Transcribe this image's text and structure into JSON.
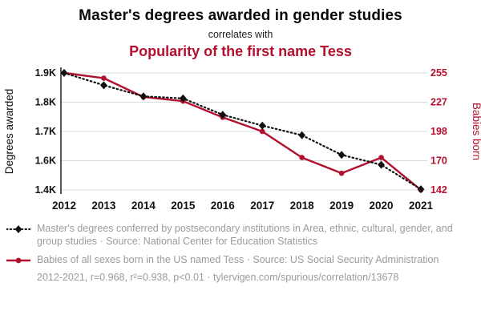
{
  "header": {
    "title": "Master's degrees awarded in gender studies",
    "subtitle": "correlates with",
    "secondary_title": "Popularity of the first name Tess"
  },
  "colors": {
    "red": "#b2102f",
    "black": "#111111",
    "gray": "#9b9b9b",
    "gridline": "#d9d9d9"
  },
  "chart_data": {
    "type": "line",
    "x": [
      2012,
      2013,
      2014,
      2015,
      2016,
      2017,
      2018,
      2019,
      2020,
      2021
    ],
    "series": [
      {
        "name": "Master's degrees conferred by postsecondary institutions in Area, ethnic, cultural, gender, and group studies",
        "axis": "left",
        "color": "#111111",
        "style": "dotted-diamond",
        "values": [
          1900,
          1858,
          1820,
          1813,
          1757,
          1720,
          1687,
          1620,
          1572,
          1405
        ]
      },
      {
        "name": "Babies of all sexes born in the US named Tess",
        "axis": "right",
        "color": "#b2102f",
        "style": "solid-circle",
        "values": [
          255,
          250,
          232,
          228,
          212,
          198,
          173,
          158,
          173,
          142
        ]
      }
    ],
    "left_axis": {
      "label": "Degrees awarded",
      "tick_labels": [
        "1.9K",
        "1.8K",
        "1.7K",
        "1.6K",
        "1.4K"
      ],
      "tick_values": [
        1900,
        1800,
        1700,
        1600,
        1400
      ]
    },
    "right_axis": {
      "label": "Babies born",
      "tick_labels": [
        "255",
        "227",
        "198",
        "170",
        "142"
      ],
      "tick_values": [
        255,
        227,
        198,
        170,
        142
      ]
    },
    "grid": true,
    "legend_position": "bottom-left"
  },
  "legend": [
    {
      "series": "degrees",
      "text": "Master's degrees conferred by postsecondary institutions in Area, ethnic, cultural, gender, and group studies · Source: National Center for Education Statistics"
    },
    {
      "series": "babies",
      "text": "Babies of all sexes born in the US named Tess · Source: US Social Security Administration"
    }
  ],
  "footer": {
    "text": "2012-2021, r=0.968, r²=0.938, p<0.01 · tylervigen.com/spurious/correlation/13678"
  }
}
